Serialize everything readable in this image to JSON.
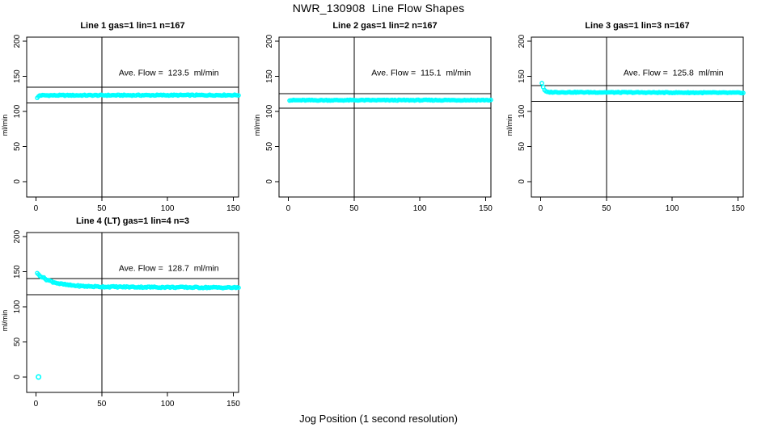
{
  "figure": {
    "title": "NWR_130908  Line Flow Shapes",
    "xlabel": "Jog Position (1 second resolution)",
    "ylabel": "ml/min",
    "background": "#ffffff",
    "marker_color": "#00ffff",
    "axis_color": "#000000"
  },
  "axes": {
    "x_ticks": [
      0,
      50,
      100,
      150
    ],
    "y_ticks": [
      0,
      50,
      100,
      150,
      200
    ],
    "xlim": [
      -7,
      154
    ],
    "ylim": [
      -22,
      206
    ],
    "grid": false,
    "box": true
  },
  "chart_data": [
    {
      "type": "scatter",
      "title": "Line 1 gas=1 lin=1 n=167",
      "n": 167,
      "ave_flow": 123.5,
      "ave_flow_label": "Ave. Flow =  123.5  ml/min",
      "label_xy": [
        101,
        151.5
      ],
      "hlines": [
        134.6,
        112.4
      ],
      "vline_x": 50,
      "x_start": 1,
      "x_end": 154,
      "x_step": 1,
      "keypoints": [
        [
          1,
          119.0
        ],
        [
          2,
          121.5
        ],
        [
          3,
          123.0
        ],
        [
          154,
          123.4
        ]
      ],
      "noise": 0.7,
      "outliers": []
    },
    {
      "type": "scatter",
      "title": "Line 2 gas=1 lin=2 n=167",
      "n": 167,
      "ave_flow": 115.1,
      "ave_flow_label": "Ave. Flow =  115.1  ml/min",
      "label_xy": [
        101,
        151.5
      ],
      "hlines": [
        125.5,
        104.7
      ],
      "vline_x": 50,
      "x_start": 1,
      "x_end": 154,
      "x_step": 1,
      "keypoints": [
        [
          1,
          116.0
        ],
        [
          154,
          116.2
        ]
      ],
      "noise": 0.6,
      "outliers": []
    },
    {
      "type": "scatter",
      "title": "Line 3 gas=1 lin=3 n=167",
      "n": 167,
      "ave_flow": 125.8,
      "ave_flow_label": "Ave. Flow =  125.8  ml/min",
      "label_xy": [
        101,
        151.5
      ],
      "hlines": [
        137.1,
        114.5
      ],
      "vline_x": 50,
      "x_start": 1,
      "x_end": 154,
      "x_step": 1,
      "keypoints": [
        [
          1,
          140.5
        ],
        [
          2,
          135.0
        ],
        [
          3,
          130.0
        ],
        [
          5,
          127.5
        ],
        [
          154,
          126.6
        ]
      ],
      "noise": 0.6,
      "outliers": []
    },
    {
      "type": "scatter",
      "title": "Line 4 (LT) gas=1 lin=4 n=3",
      "n": 3,
      "ave_flow": 128.7,
      "ave_flow_label": "Ave. Flow =  128.7  ml/min",
      "label_xy": [
        101,
        151.5
      ],
      "hlines": [
        140.3,
        117.1
      ],
      "vline_x": 50,
      "x_start": 1,
      "x_end": 154,
      "x_step": 1,
      "keypoints": [
        [
          1,
          147.5
        ],
        [
          4,
          143.5
        ],
        [
          8,
          139.0
        ],
        [
          13,
          135.5
        ],
        [
          18,
          133.0
        ],
        [
          25,
          131.0
        ],
        [
          35,
          129.5
        ],
        [
          50,
          128.7
        ],
        [
          80,
          128.2
        ],
        [
          154,
          127.4
        ]
      ],
      "noise": 0.9,
      "outliers": [
        [
          2,
          0
        ]
      ]
    }
  ]
}
